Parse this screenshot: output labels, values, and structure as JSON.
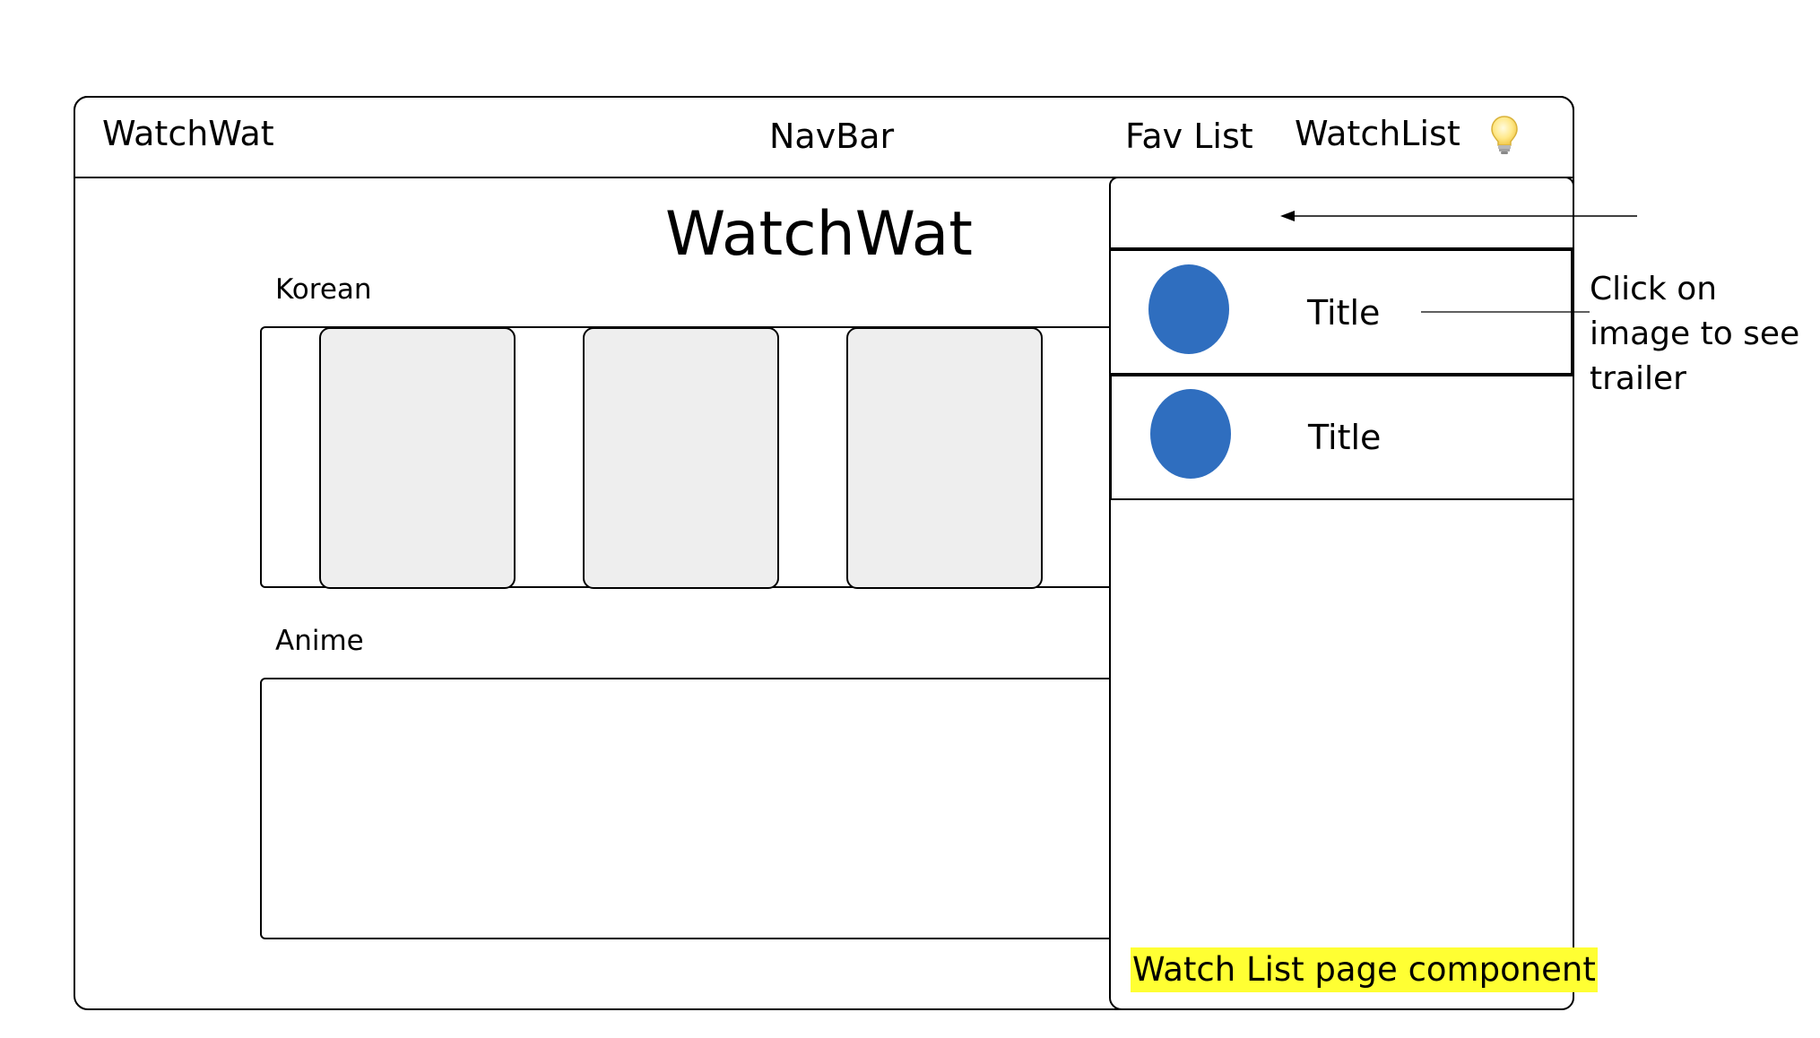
{
  "navbar": {
    "brand": "WatchWat",
    "label": "NavBar",
    "links": [
      "Fav List",
      "WatchList"
    ],
    "icon": "lightbulb-icon"
  },
  "main": {
    "title": "WatchWat",
    "sections": [
      {
        "label": "Korean"
      },
      {
        "label": "Anime"
      }
    ]
  },
  "watchlist_panel": {
    "items": [
      {
        "title": "Title"
      },
      {
        "title": "Title"
      }
    ],
    "component_label": "Watch List page component"
  },
  "annotation": {
    "note": "Click on image to see trailer"
  },
  "colors": {
    "thumbnail": "#2f6ebf",
    "card_fill": "#eeeeee",
    "highlight": "#ffff33"
  }
}
